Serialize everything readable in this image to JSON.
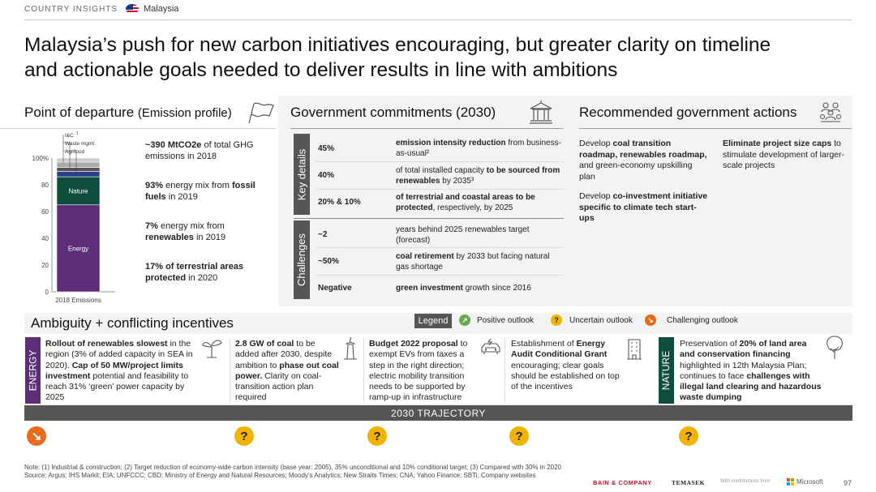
{
  "header": {
    "section": "COUNTRY INSIGHTS",
    "country": "Malaysia",
    "title_line1": "Malaysia’s push for new carbon initiatives encouraging, but greater clarity on timeline",
    "title_line2": "and actionable goals needed to deliver results in line with ambitions"
  },
  "departure": {
    "title": "Point of departure",
    "subtitle": "(Emission profile)",
    "stats": [
      {
        "bold": "~390 MtCO2e",
        "rest": " of total GHG emissions in 2018"
      },
      {
        "bold": "93%",
        "mid": " energy mix from ",
        "bold2": "fossil fuels",
        "rest": " in 2019"
      },
      {
        "bold": "7%",
        "mid": " energy mix from ",
        "bold2": "renewables",
        "rest": " in 2019"
      },
      {
        "bold": "17% of terrestrial areas protected",
        "rest": " in 2020"
      }
    ]
  },
  "chart_data": {
    "type": "bar",
    "categories": [
      "2018 Emissions"
    ],
    "xlabel": "2018 Emissions",
    "ylabel": "",
    "ylim": [
      0,
      100
    ],
    "yticks": [
      "0",
      "20",
      "40",
      "60",
      "80",
      "100%"
    ],
    "series": [
      {
        "name": "Energy",
        "values": [
          65
        ],
        "color": "#5e2d79"
      },
      {
        "name": "Nature",
        "values": [
          21
        ],
        "color": "#0f4d3c"
      },
      {
        "name": "Agrifood",
        "values": [
          4
        ],
        "color": "#2b3f8f"
      },
      {
        "name": "Waste mgmt.",
        "values": [
          3
        ],
        "color": "#555555"
      },
      {
        "name": "I&C",
        "values": [
          4
        ],
        "color": "#aaaaaa"
      },
      {
        "name": "",
        "values": [
          3
        ],
        "color": "#cccccc"
      }
    ],
    "legend_labels": [
      "I&C",
      "Waste mgmt.",
      "Agrifood"
    ],
    "footnote_mark": "1"
  },
  "commitments": {
    "title": "Government commitments (2030)",
    "key_details_label": "Key details",
    "challenges_label": "Challenges",
    "key_details": [
      {
        "value": "45%",
        "text_bold": "emission intensity reduction",
        "text_rest": " from business-as-usual²"
      },
      {
        "value": "40%",
        "text_pre": "of total installed capacity ",
        "text_bold": "to be sourced from renewables",
        "text_rest": " by 2035³"
      },
      {
        "value": "20% & 10%",
        "text_bold": "of terrestrial and coastal areas to be protected",
        "text_rest": ", respectively, by 2025"
      }
    ],
    "challenges": [
      {
        "value": "~2",
        "text_pre": "years behind 2025 renewables target (forecast)"
      },
      {
        "value": "~50%",
        "text_bold": "coal retirement",
        "text_rest": " by 2033 but facing natural gas shortage"
      },
      {
        "value": "Negative",
        "text_bold": "green investment",
        "text_rest": " growth since 2016"
      }
    ]
  },
  "actions": {
    "title": "Recommended government actions",
    "items": [
      {
        "pre": "Develop ",
        "bold": "coal transition roadmap, renewables roadmap,",
        "rest": " and green-economy upskilling plan"
      },
      {
        "pre": "Develop ",
        "bold": "co-investment initiative specific to climate tech start-ups",
        "rest": ""
      },
      {
        "pre": "",
        "bold": "Eliminate project size caps",
        "rest": " to stimulate development of larger-scale projects"
      }
    ]
  },
  "ambiguity": {
    "title": "Ambiguity + conflicting incentives",
    "legend_label": "Legend",
    "legend": [
      {
        "label": "Positive outlook",
        "type": "green"
      },
      {
        "label": "Uncertain outlook",
        "type": "yellow"
      },
      {
        "label": "Challenging outlook",
        "type": "orange"
      }
    ],
    "energy_label": "ENERGY",
    "nature_label": "NATURE",
    "trajectory_label": "2030  TRAJECTORY",
    "cards": [
      {
        "id": "renewables",
        "html_pre": "",
        "bold": "Rollout of renewables slowest",
        "rest": " in the region (3% of added capacity in SEA in 2020). ",
        "bold2": "Cap of 50 MW/project limits investment",
        "rest2": " potential and feasibility to reach 31% ‘green’ power capacity by 2025",
        "outlook": "orange",
        "glyph": "↘"
      },
      {
        "id": "coal",
        "bold": "2.8 GW of coal",
        "rest": " to be added after 2030, despite ambition to ",
        "bold2": "phase out coal power.",
        "rest2": " Clarity on coal-transition action plan required",
        "outlook": "yellow",
        "glyph": "?"
      },
      {
        "id": "budget",
        "bold": "Budget 2022 proposal",
        "rest": " to exempt EVs from taxes a step in the right direction; electric mobility transition needs to be supported by ramp-up in infrastructure",
        "bold2": "",
        "rest2": "",
        "outlook": "yellow",
        "glyph": "?"
      },
      {
        "id": "audit",
        "pre": "Establishment of ",
        "bold": "Energy Audit Conditional Grant",
        "rest": " encouraging; clear goals should be established on top of the incentives",
        "bold2": "",
        "rest2": "",
        "outlook": "yellow",
        "glyph": "?"
      },
      {
        "id": "land",
        "pre": "Preservation of ",
        "bold": "20% of land area and conservation financing",
        "rest": " highlighted in 12th Malaysia Plan; continues to face ",
        "bold2": "challenges with illegal land clearing and hazardous waste dumping",
        "rest2": "",
        "outlook": "yellow",
        "glyph": "?"
      }
    ]
  },
  "footer": {
    "note": "Note: (1) Industrial & construction; (2) Target reduction of economy-wide carbon intensity (base year: 2005), 35% unconditional and 10% conditional target; (3) Compared with 30% in 2020",
    "source": "Source: Argus; IHS Markit; EIA; UNFCCC; CBD; Ministry of Energy and Natural Resources; Moody’s Analytics; New Straits Times; CNA; Yahoo Finance; SBTi; Company websites",
    "bain": "BAIN & COMPANY",
    "temasek": "TEMASEK",
    "contrib": "With contributions from",
    "microsoft": "Microsoft",
    "page": "97"
  }
}
